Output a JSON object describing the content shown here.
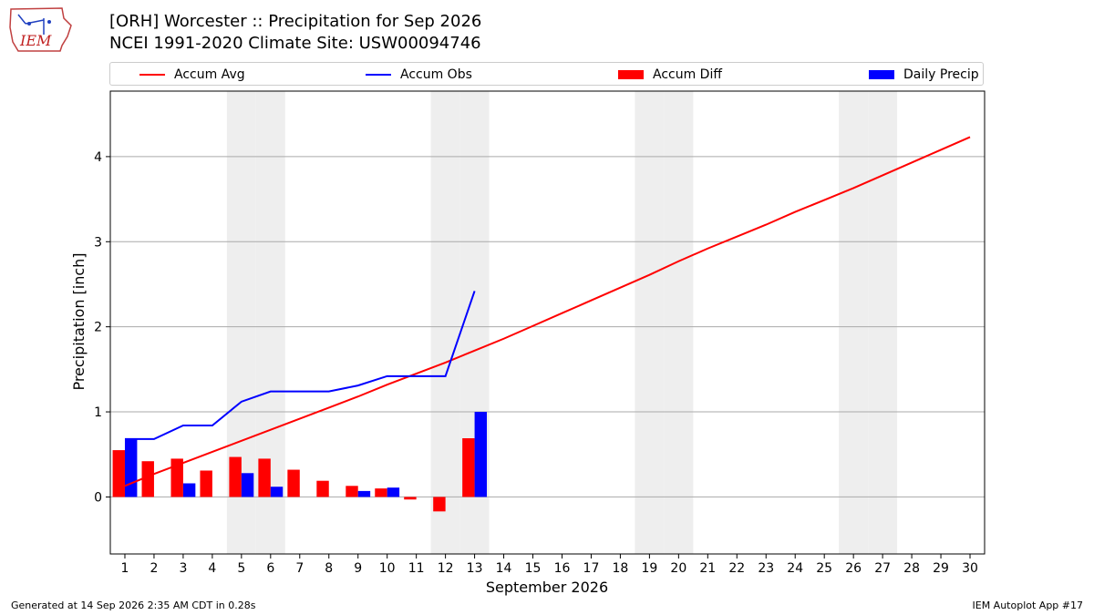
{
  "header": {
    "title_line1": "[ORH] Worcester :: Precipitation for Sep 2026",
    "title_line2": "NCEI 1991-2020 Climate Site: USW00094746",
    "logo_text": "IEM"
  },
  "footer": {
    "left": "Generated at 14 Sep 2026 2:35 AM CDT in 0.28s",
    "right": "IEM Autoplot App #17"
  },
  "colors": {
    "accum_avg": "#ff0000",
    "accum_obs": "#0000ff",
    "accum_diff": "#ff0000",
    "daily_precip": "#0000ff",
    "weekend_shade": "#eeeeee",
    "grid": "#aaaaaa"
  },
  "chart_data": {
    "type": "bar",
    "xlabel": "September 2026",
    "ylabel": "Precipitation [inch]",
    "xlim": [
      0.5,
      30.5
    ],
    "ylim": [
      -0.67,
      4.77
    ],
    "yticks": [
      0,
      1,
      2,
      3,
      4
    ],
    "grid": "y",
    "legend_position": "top",
    "days": [
      1,
      2,
      3,
      4,
      5,
      6,
      7,
      8,
      9,
      10,
      11,
      12,
      13,
      14,
      15,
      16,
      17,
      18,
      19,
      20,
      21,
      22,
      23,
      24,
      25,
      26,
      27,
      28,
      29,
      30
    ],
    "weekend_days": [
      5,
      6,
      12,
      13,
      19,
      20,
      26,
      27
    ],
    "series": [
      {
        "name": "Accum Avg",
        "kind": "line",
        "values": [
          0.13,
          0.27,
          0.4,
          0.53,
          0.66,
          0.79,
          0.92,
          1.05,
          1.18,
          1.32,
          1.45,
          1.58,
          1.72,
          1.86,
          2.01,
          2.16,
          2.31,
          2.46,
          2.61,
          2.77,
          2.92,
          3.06,
          3.2,
          3.35,
          3.49,
          3.63,
          3.78,
          3.93,
          4.08,
          4.23
        ]
      },
      {
        "name": "Accum Obs",
        "kind": "line",
        "values": [
          0.68,
          0.68,
          0.84,
          0.84,
          1.12,
          1.24,
          1.24,
          1.24,
          1.31,
          1.42,
          1.42,
          1.42,
          2.42
        ]
      },
      {
        "name": "Accum Diff",
        "kind": "bar",
        "values": [
          0.55,
          0.42,
          0.45,
          0.31,
          0.47,
          0.45,
          0.32,
          0.19,
          0.13,
          0.1,
          -0.03,
          -0.17,
          0.69
        ]
      },
      {
        "name": "Daily Precip",
        "kind": "bar",
        "values": [
          0.68,
          0.0,
          0.16,
          0.0,
          0.28,
          0.12,
          0.0,
          0.0,
          0.07,
          0.11,
          0.0,
          0.0,
          1.0
        ]
      }
    ]
  }
}
